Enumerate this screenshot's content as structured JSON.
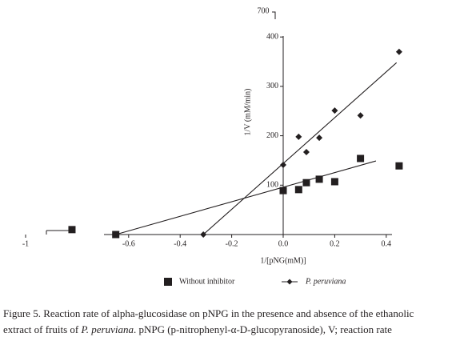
{
  "chart_data": {
    "type": "scatter",
    "x_label": "1/[pNG(mM)]",
    "y_label": "1/V (mM/min)",
    "xlim": [
      -1.0,
      0.5
    ],
    "ylim": [
      0,
      400
    ],
    "xticks": [
      -1.0,
      -0.6,
      -0.4,
      -0.2,
      {
        "value": 0,
        "label": "0.0"
      },
      0.2,
      0.4
    ],
    "yticks": [
      100,
      200,
      300,
      400
    ],
    "y_break_tick": 700,
    "series": [
      {
        "name": "Without inhibitor",
        "color": "#231f20",
        "marker": "square",
        "x": [
          -0.82,
          -0.65,
          0.0,
          0.06,
          0.09,
          0.14,
          0.2,
          0.3,
          0.45
        ],
        "values": [
          10,
          0,
          89,
          91,
          105,
          112,
          107,
          154,
          139
        ],
        "fit": {
          "x": [
            -0.65,
            0.36
          ],
          "values": [
            0,
            149
          ]
        }
      },
      {
        "name": "P. peruviana",
        "color": "#231f20",
        "marker": "diamond",
        "x": [
          -0.31,
          0.0,
          0.06,
          0.09,
          0.14,
          0.2,
          0.3,
          0.45
        ],
        "values": [
          0,
          141,
          198,
          167,
          196,
          251,
          241,
          370
        ],
        "fit": {
          "x": [
            -0.31,
            0.44
          ],
          "values": [
            0,
            348
          ]
        }
      }
    ]
  },
  "caption": {
    "line1": "Figure 5. Reaction rate of alpha-glucosidase on pNPG in the presence and absence of the ethanolic",
    "line2a": "extract of fruits of ",
    "line2b": "P. peruviana",
    "line2c": ". pNPG (p-nitrophenyl-α-D-glucopyranoside), V; reaction rate"
  }
}
